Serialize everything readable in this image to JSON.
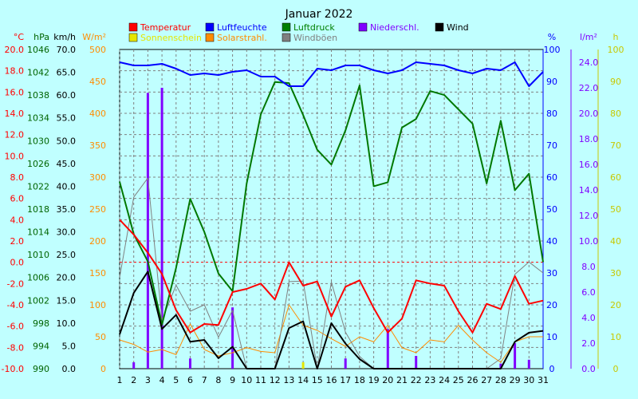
{
  "chart_data": {
    "type": "line",
    "title": "Januar 2022",
    "x": [
      1,
      2,
      3,
      4,
      5,
      6,
      7,
      8,
      9,
      10,
      11,
      12,
      13,
      14,
      15,
      16,
      17,
      18,
      19,
      20,
      21,
      22,
      23,
      24,
      25,
      26,
      27,
      28,
      29,
      30,
      31
    ],
    "axes": [
      {
        "unit": "°C",
        "color": "#ff0000",
        "min": -10,
        "max": 20,
        "step": 2,
        "decimals": 1
      },
      {
        "unit": "hPa",
        "color": "#006400",
        "min": 990,
        "max": 1046,
        "step": 4,
        "decimals": 0
      },
      {
        "unit": "km/h",
        "color": "#000000",
        "min": 0,
        "max": 70,
        "step": 5,
        "decimals": 1
      },
      {
        "unit": "W/m²",
        "color": "#ff8c00",
        "min": 0,
        "max": 500,
        "step": 50,
        "decimals": 0
      },
      {
        "unit": "%",
        "color": "#0000ff",
        "min": 0,
        "max": 100,
        "step": 10,
        "decimals": 0
      },
      {
        "unit": "l/m²",
        "color": "#8000ff",
        "min": 0,
        "max": 25,
        "step": 2,
        "decimals": 1
      },
      {
        "unit": "h",
        "color": "#c8c800",
        "min": 0,
        "max": 100,
        "step": 10,
        "decimals": 0
      }
    ],
    "legend": [
      {
        "label": "Temperatur",
        "color": "#ff0000"
      },
      {
        "label": "Luftfeuchte",
        "color": "#0000ff"
      },
      {
        "label": "Luftdruck",
        "color": "#008000"
      },
      {
        "label": "Niederschl.",
        "color": "#8000ff"
      },
      {
        "label": "Wind",
        "color": "#000000"
      },
      {
        "label": "Sonnenschein",
        "color": "#e6e600"
      },
      {
        "label": "Solarstrahl.",
        "color": "#ff8c00"
      },
      {
        "label": "Windböen",
        "color": "#808080"
      }
    ],
    "series": [
      {
        "name": "Temperatur",
        "axis": 0,
        "color": "#ff0000",
        "width": 2,
        "values": [
          4.0,
          2.6,
          0.9,
          -1.1,
          -4.5,
          -6.6,
          -5.8,
          -5.9,
          -2.8,
          -2.5,
          -2.0,
          -3.5,
          0.0,
          -2.2,
          -1.8,
          -5.1,
          -2.3,
          -1.7,
          -4.3,
          -6.6,
          -5.3,
          -1.7,
          -2.0,
          -2.2,
          -4.6,
          -6.6,
          -3.9,
          -4.4,
          -1.3,
          -3.9,
          -3.6
        ]
      },
      {
        "name": "Luftfeuchte",
        "axis": 4,
        "color": "#0000ff",
        "width": 2,
        "values": [
          96,
          95,
          95,
          95.5,
          94,
          92,
          92.5,
          92,
          93,
          93.5,
          91.5,
          91.5,
          88.5,
          88.5,
          94,
          93.5,
          95,
          95,
          93.5,
          92.5,
          93.5,
          96,
          95.5,
          95,
          93.5,
          92.5,
          94,
          93.5,
          96,
          88.5,
          93
        ]
      },
      {
        "name": "Luftdruck",
        "axis": 1,
        "color": "#007800",
        "width": 2,
        "values": [
          1022.8,
          1013.6,
          1008.8,
          997.7,
          1007.7,
          1019.8,
          1014.0,
          1006.7,
          1003.6,
          1022.5,
          1034.6,
          1040.3,
          1040.1,
          1034.5,
          1028.4,
          1025.8,
          1031.8,
          1039.7,
          1022.0,
          1022.7,
          1032.3,
          1033.8,
          1038.7,
          1038.0,
          1035.5,
          1033.0,
          1022.5,
          1033.5,
          1021.3,
          1024.2,
          1008.7
        ]
      },
      {
        "name": "Windböen",
        "axis": 2,
        "color": "#808080",
        "width": 1,
        "values": [
          20.0,
          37.6,
          41.8,
          10.7,
          18.3,
          12.6,
          14.0,
          6.9,
          12.8,
          0,
          0,
          0,
          19.1,
          19.2,
          0,
          19.0,
          8.0,
          2.7,
          0,
          0,
          0,
          0,
          0,
          0,
          0,
          0,
          0,
          2.2,
          20.7,
          23.4,
          21.0
        ]
      },
      {
        "name": "Wind",
        "axis": 2,
        "color": "#000000",
        "width": 2,
        "values": [
          7.5,
          16.6,
          21.3,
          8.7,
          11.8,
          5.9,
          6.3,
          2.3,
          4.8,
          0,
          0,
          0,
          8.9,
          10.4,
          0,
          10.0,
          5.5,
          2.1,
          0,
          0,
          0,
          0,
          0,
          0,
          0,
          0,
          0,
          0,
          5.9,
          7.9,
          8.3
        ]
      },
      {
        "name": "Solarstrahl.",
        "axis": 3,
        "color": "#ff8c00",
        "width": 1,
        "values": [
          45,
          38,
          26,
          30,
          22,
          70,
          30,
          20,
          25,
          33,
          27,
          25,
          100,
          68,
          60,
          47,
          35,
          50,
          42,
          68,
          33,
          25,
          45,
          42,
          68,
          45,
          25,
          10,
          42,
          50,
          50
        ]
      }
    ],
    "bars": [
      {
        "name": "Niederschl.",
        "axis": 5,
        "color": "#8000ff",
        "values": [
          0,
          0.5,
          21.6,
          22,
          0,
          0.8,
          0,
          0,
          4.8,
          0,
          0,
          0,
          0,
          0,
          0,
          0,
          0.8,
          0,
          0,
          3.1,
          0,
          1,
          0,
          0,
          0,
          0,
          0,
          0.4,
          2,
          0.7,
          0
        ]
      },
      {
        "name": "Sonnenschein",
        "axis": 6,
        "color": "#e6e600",
        "values": [
          0,
          0,
          0,
          0,
          0,
          0,
          0,
          0,
          0,
          0,
          0,
          0,
          0,
          2,
          0,
          0,
          0,
          0,
          0,
          0,
          0,
          0,
          0,
          0,
          0,
          0,
          0,
          0,
          0,
          0,
          0
        ]
      }
    ]
  }
}
